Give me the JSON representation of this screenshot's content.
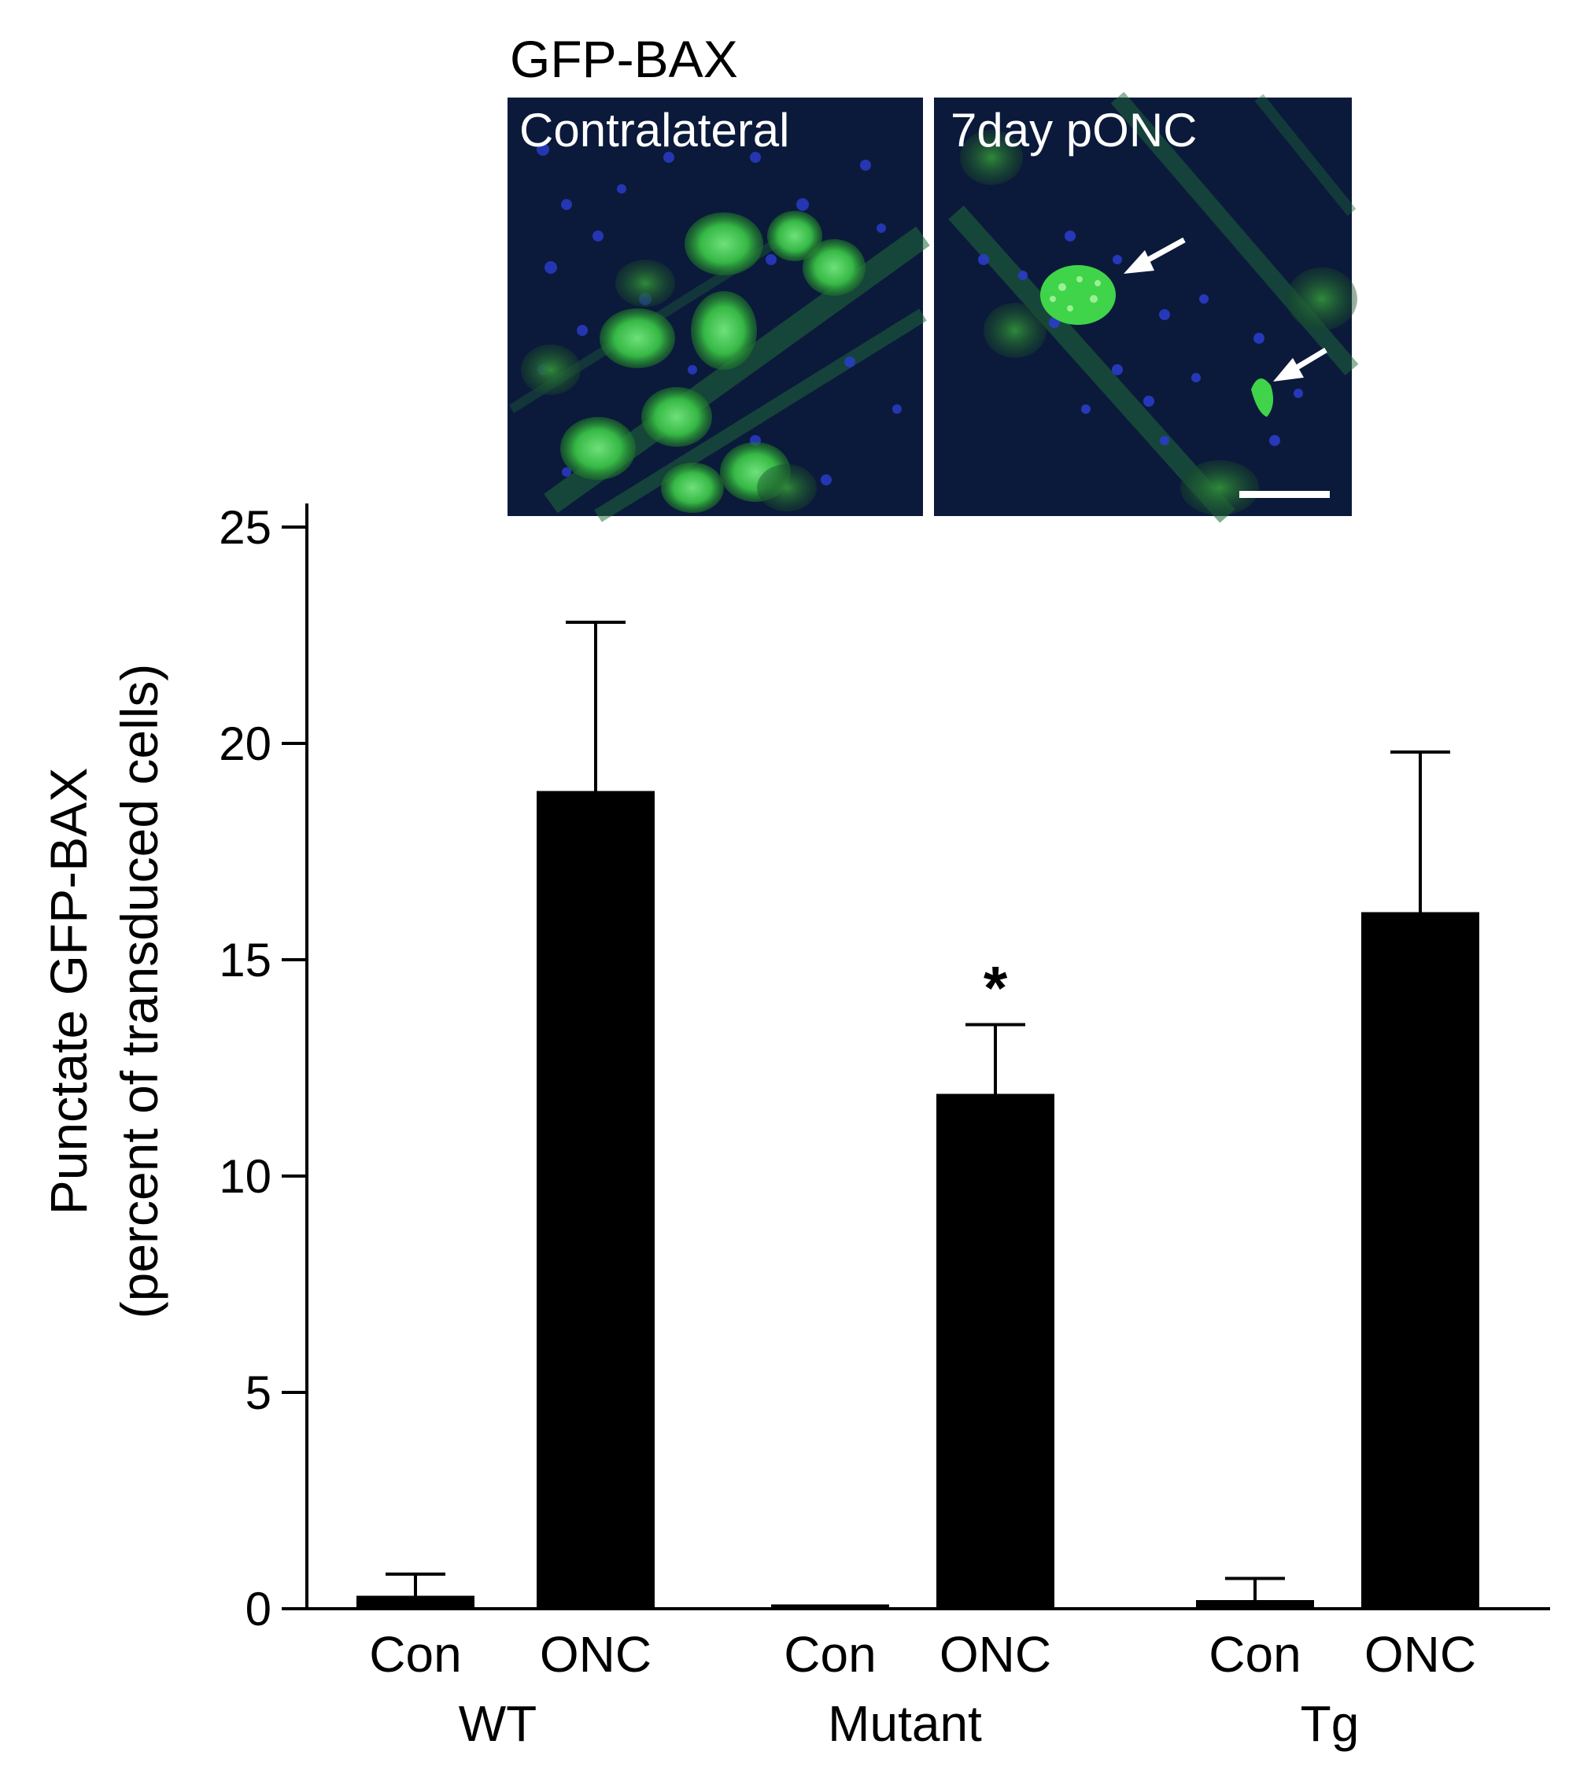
{
  "figure": {
    "panel_title": "GFP-BAX",
    "panels": [
      {
        "label": "Contralateral"
      },
      {
        "label": "7day pONC"
      }
    ]
  },
  "chart_data": {
    "type": "bar",
    "categories": [
      "Con",
      "ONC",
      "Con",
      "ONC",
      "Con",
      "ONC"
    ],
    "groups": [
      {
        "name": "WT",
        "categories": [
          "Con",
          "ONC"
        ]
      },
      {
        "name": "Mutant",
        "categories": [
          "Con",
          "ONC"
        ]
      },
      {
        "name": "Tg",
        "categories": [
          "Con",
          "ONC"
        ]
      }
    ],
    "values": [
      0.3,
      18.9,
      0.1,
      11.9,
      0.2,
      16.1
    ],
    "error_upper": [
      0.8,
      22.8,
      0.1,
      13.5,
      0.7,
      19.8
    ],
    "annotations": [
      "",
      "",
      "",
      "*",
      "",
      ""
    ],
    "ylabel_line1": "Punctate GFP-BAX",
    "ylabel_line2": "(percent of transduced cells)",
    "xlabel": "",
    "ylim": [
      0,
      25
    ],
    "yticks": [
      0,
      5,
      10,
      15,
      20,
      25
    ],
    "ytick_labels": [
      "0",
      "5",
      "10",
      "15",
      "20",
      "25"
    ],
    "bar_color": "#000000",
    "grid": false
  }
}
